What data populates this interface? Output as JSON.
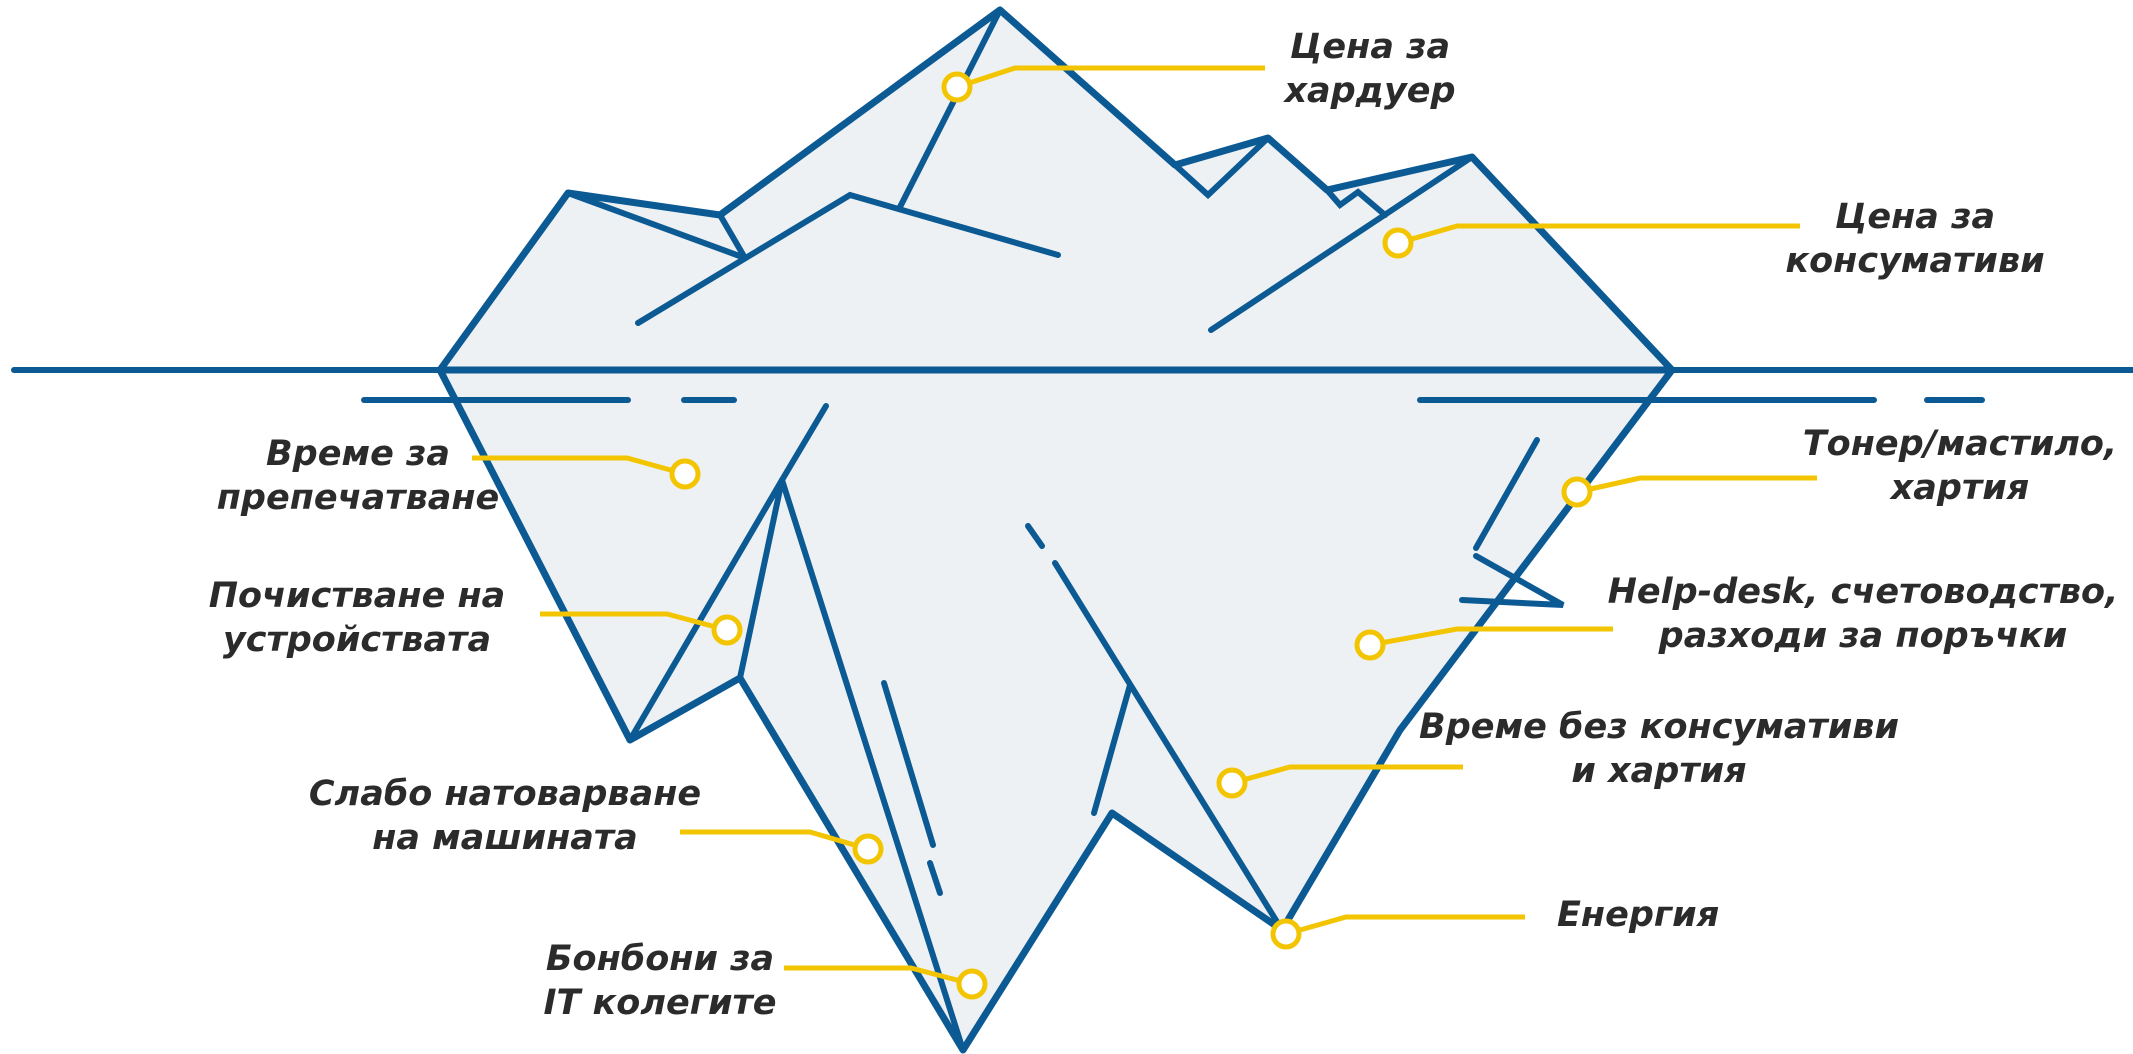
{
  "colors": {
    "outline": "#0c5a94",
    "fill": "#eef1f3",
    "callout": "#f2c500",
    "text": "#2b2b2b"
  },
  "labels": {
    "hardware_cost": [
      "Цена за",
      "хардуер"
    ],
    "consumables_cost": [
      "Цена за",
      "консумативи"
    ],
    "reprint_time": [
      "Време за",
      "препечатване"
    ],
    "toner_paper": [
      "Тонер/мастило,",
      "хартия"
    ],
    "device_cleaning": [
      "Почистване на",
      "устройствата"
    ],
    "helpdesk": [
      "Help-desk, счетоводство,",
      "разходи за поръчки"
    ],
    "downtime_consumables": [
      "Време без консумативи",
      "и хартия"
    ],
    "low_load": [
      "Слабо натоварване",
      "на машината"
    ],
    "energy": [
      "Енергия"
    ],
    "candies": [
      "Бонбони за",
      "IT колегите"
    ]
  }
}
